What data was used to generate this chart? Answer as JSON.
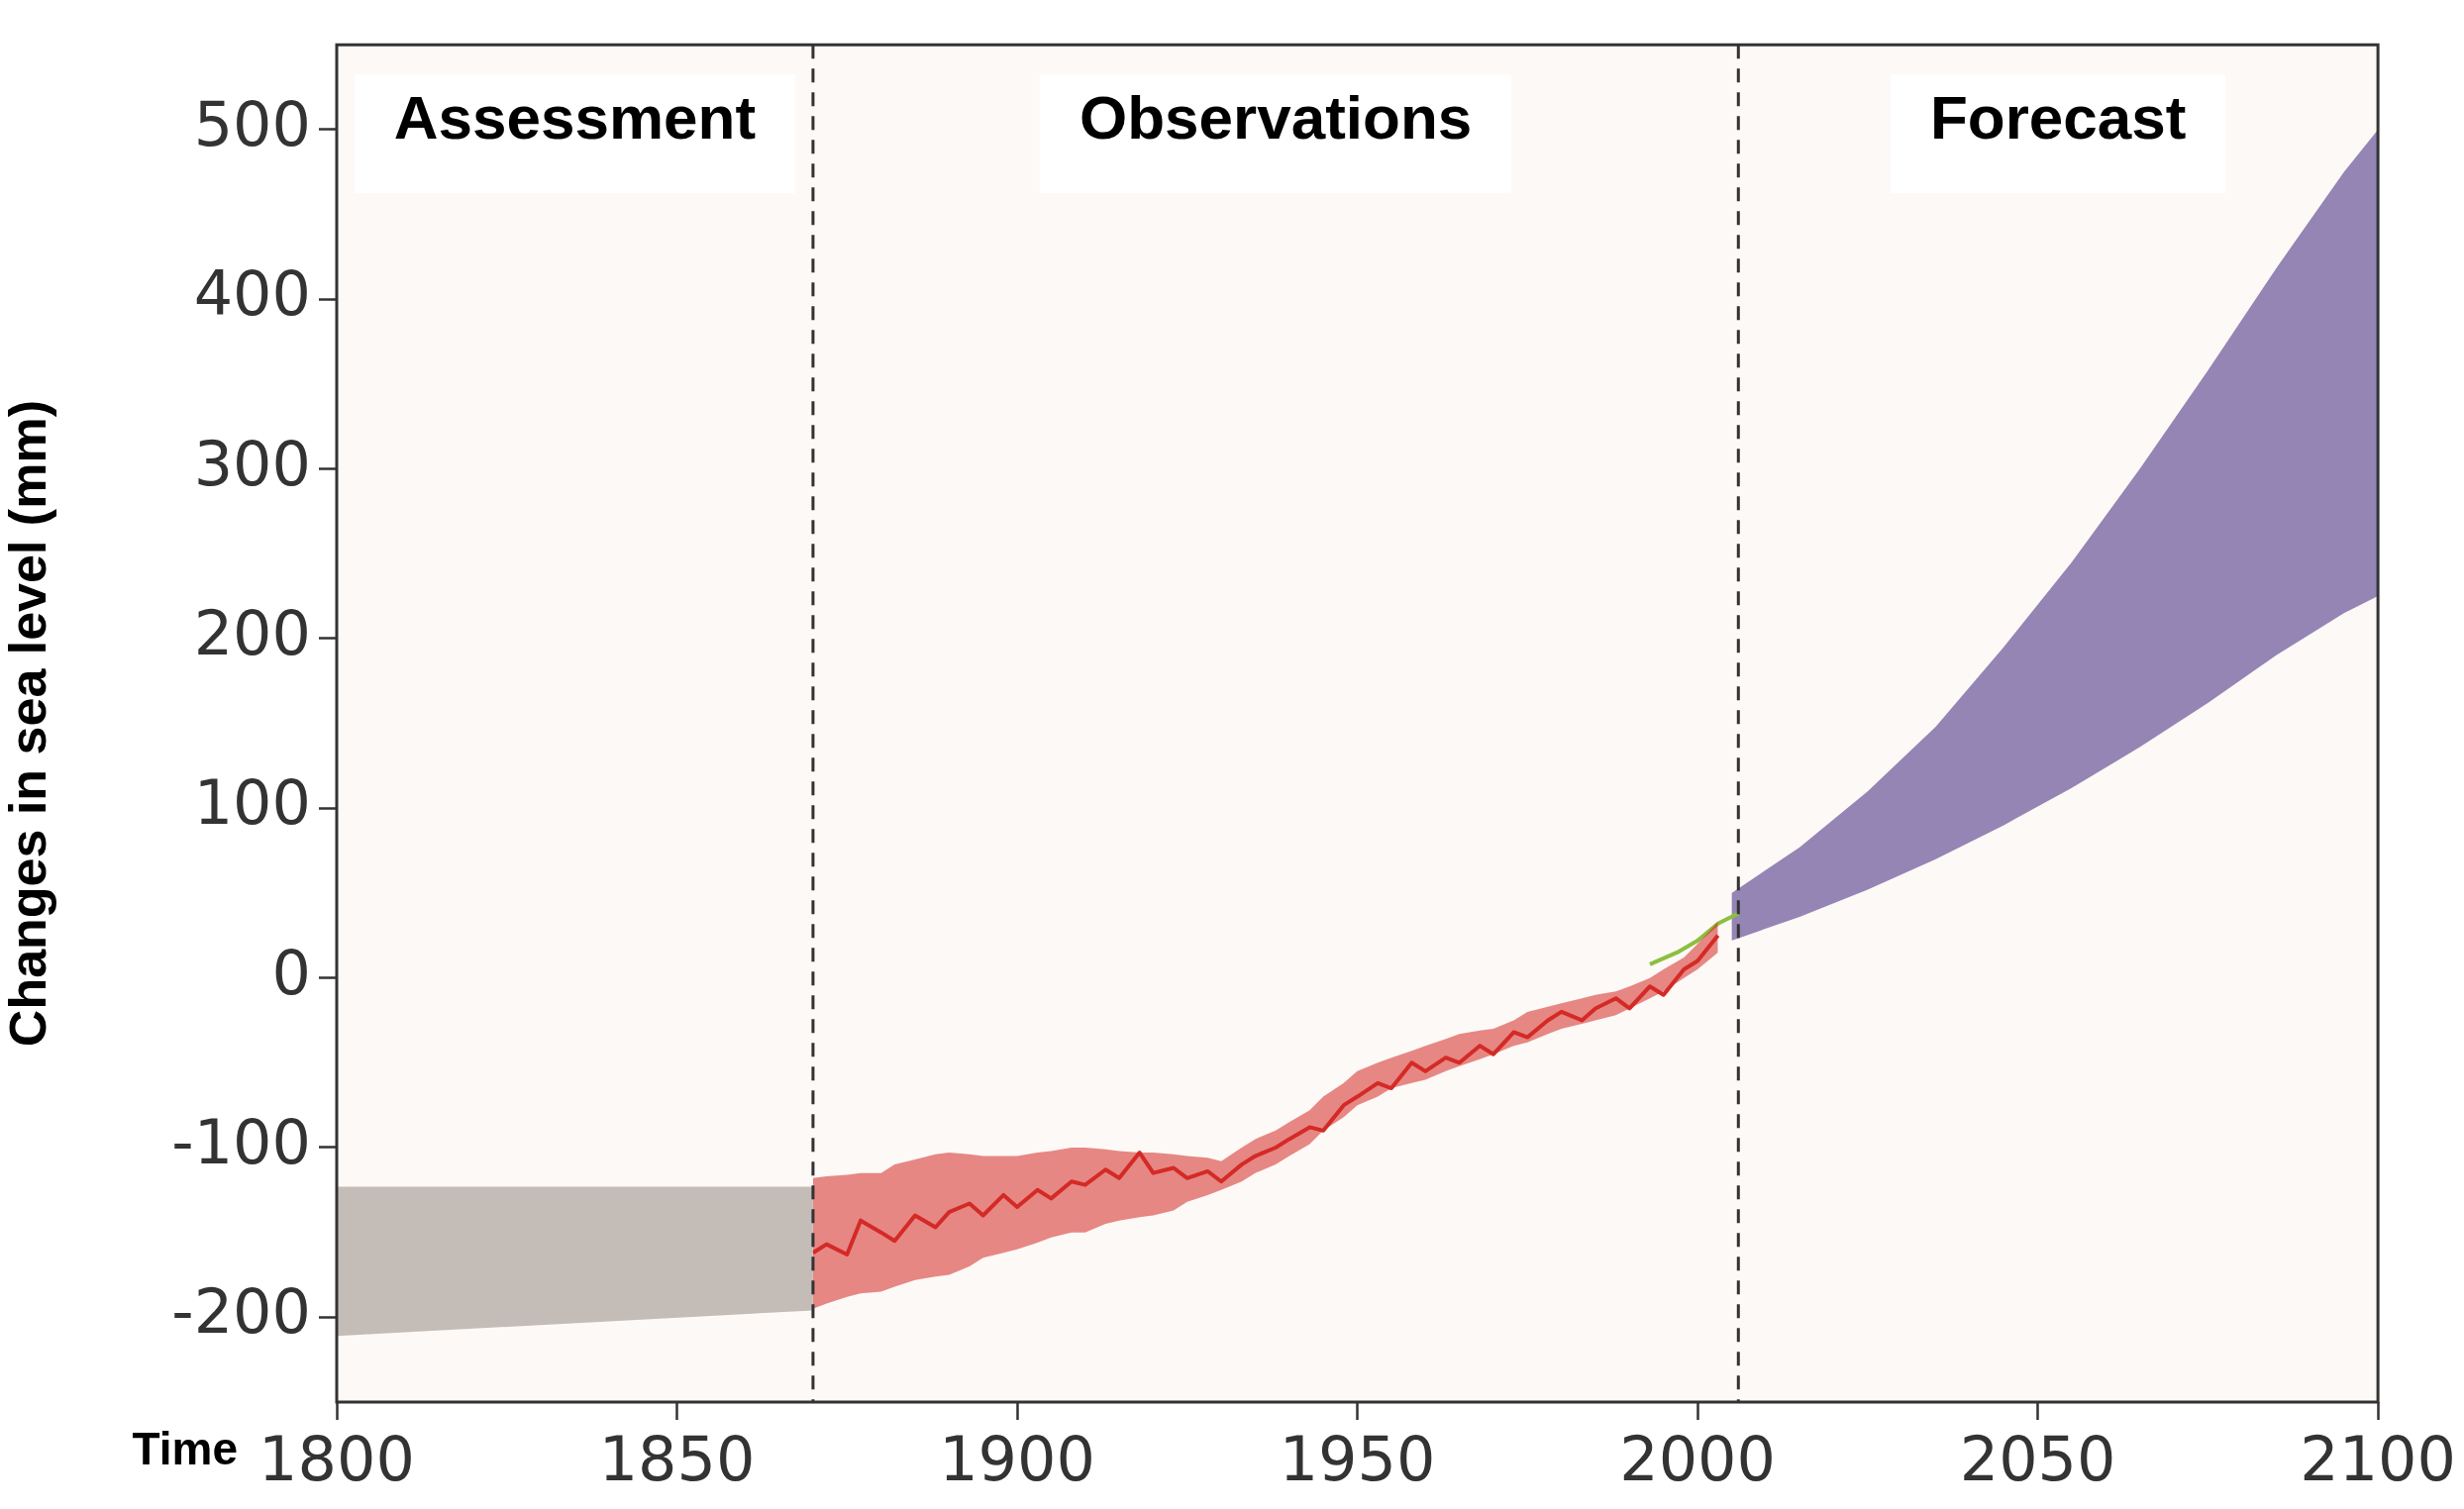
{
  "chart_data": {
    "type": "line",
    "xlabel": "Time",
    "ylabel": "Changes in sea level (mm)",
    "xlim": [
      1800,
      2100
    ],
    "xticks": [
      1800,
      1850,
      1900,
      1950,
      2000,
      2050,
      2100
    ],
    "ylim": [
      -250,
      550
    ],
    "yticks": [
      -200,
      -100,
      0,
      100,
      200,
      300,
      400,
      500
    ],
    "grid": false,
    "legend": false,
    "marker": "none",
    "series": [
      {
        "type": "area",
        "color": "#c4bcb6",
        "x": [
          1800,
          1870
        ],
        "values": [
          null,
          null
        ],
        "lower": [
          -211,
          -196
        ],
        "upper": [
          -123,
          -123
        ]
      },
      {
        "type": "line",
        "color": "#d42a26",
        "x": [
          1870,
          1872,
          1875,
          1877,
          1880,
          1882,
          1885,
          1888,
          1890,
          1893,
          1895,
          1898,
          1900,
          1903,
          1905,
          1908,
          1910,
          1913,
          1915,
          1918,
          1920,
          1923,
          1925,
          1928,
          1930,
          1933,
          1935,
          1938,
          1940,
          1943,
          1945,
          1948,
          1950,
          1953,
          1955,
          1958,
          1960,
          1963,
          1965,
          1968,
          1970,
          1973,
          1975,
          1978,
          1980,
          1983,
          1985,
          1988,
          1990,
          1993,
          1995,
          1998,
          2000,
          2003
        ],
        "values": [
          -162,
          -157,
          -163,
          -143,
          -150,
          -155,
          -140,
          -147,
          -138,
          -133,
          -140,
          -128,
          -135,
          -125,
          -130,
          -120,
          -122,
          -113,
          -118,
          -103,
          -115,
          -112,
          -118,
          -114,
          -120,
          -110,
          -105,
          -100,
          -95,
          -88,
          -90,
          -75,
          -70,
          -62,
          -65,
          -50,
          -55,
          -47,
          -50,
          -40,
          -45,
          -32,
          -35,
          -25,
          -20,
          -25,
          -18,
          -12,
          -18,
          -5,
          -10,
          5,
          10,
          25
        ],
        "lower": [
          -195,
          -192,
          -188,
          -186,
          -185,
          -182,
          -178,
          -176,
          -175,
          -170,
          -165,
          -162,
          -160,
          -156,
          -153,
          -150,
          -150,
          -145,
          -143,
          -141,
          -140,
          -137,
          -132,
          -128,
          -125,
          -120,
          -115,
          -110,
          -105,
          -98,
          -90,
          -82,
          -75,
          -70,
          -65,
          -62,
          -60,
          -55,
          -52,
          -48,
          -45,
          -40,
          -38,
          -33,
          -30,
          -27,
          -25,
          -22,
          -18,
          -12,
          -8,
          0,
          5,
          15
        ],
        "upper": [
          -118,
          -117,
          -116,
          -115,
          -115,
          -110,
          -107,
          -104,
          -103,
          -104,
          -105,
          -105,
          -105,
          -103,
          -102,
          -100,
          -100,
          -101,
          -102,
          -103,
          -103,
          -104,
          -105,
          -106,
          -108,
          -100,
          -95,
          -90,
          -85,
          -78,
          -70,
          -62,
          -55,
          -50,
          -47,
          -43,
          -40,
          -36,
          -33,
          -31,
          -30,
          -25,
          -20,
          -17,
          -15,
          -12,
          -10,
          -8,
          -5,
          0,
          5,
          12,
          20,
          33
        ]
      },
      {
        "type": "line",
        "color": "#8cbf3f",
        "x": [
          1993,
          1997,
          2000,
          2003,
          2006
        ],
        "values": [
          8,
          15,
          22,
          32,
          38
        ]
      },
      {
        "type": "area",
        "color": "#9485b5",
        "x": [
          2005,
          2015,
          2025,
          2035,
          2045,
          2055,
          2065,
          2075,
          2085,
          2095,
          2100
        ],
        "values": [
          null,
          null,
          null,
          null,
          null,
          null,
          null,
          null,
          null,
          null,
          null
        ],
        "lower": [
          22,
          36,
          52,
          70,
          90,
          112,
          136,
          162,
          190,
          215,
          225
        ],
        "upper": [
          50,
          77,
          110,
          148,
          195,
          245,
          300,
          358,
          418,
          475,
          500
        ]
      }
    ],
    "ref_lines": [
      {
        "axis": "x",
        "value": 1870,
        "line_style": "dashed",
        "color": "#333333"
      },
      {
        "axis": "x",
        "value": 2006,
        "line_style": "dashed",
        "color": "#333333"
      }
    ],
    "annotations": [
      "Assessment",
      "Observations",
      "Forecast"
    ]
  }
}
